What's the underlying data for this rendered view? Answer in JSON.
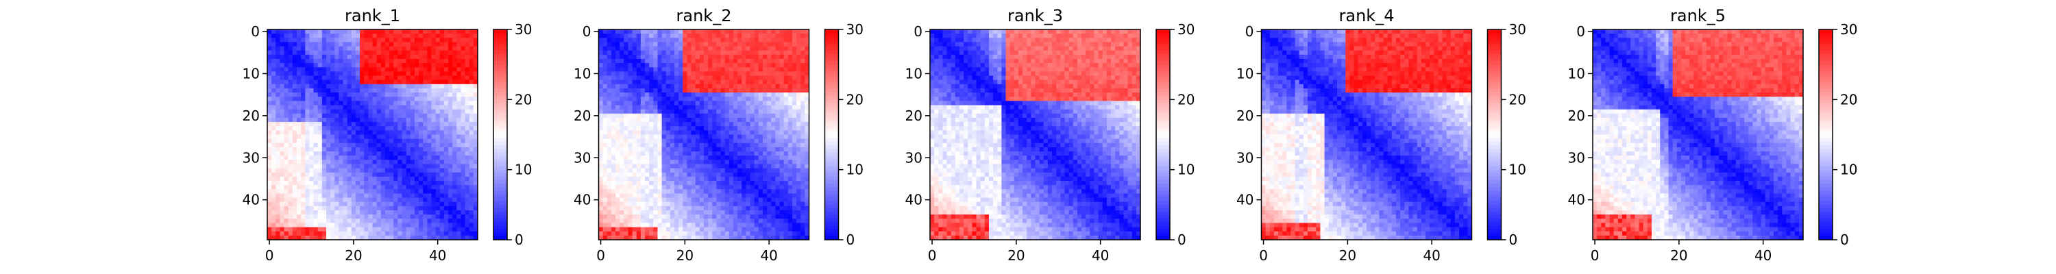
{
  "figure": {
    "background": "#ffffff",
    "colormap": "bwr",
    "colormap_colors": [
      "#0000ff",
      "#ffffff",
      "#ff0000"
    ]
  },
  "chart_data": [
    {
      "type": "heatmap",
      "title": "rank_1",
      "rows": 50,
      "cols": 50,
      "xticks": [
        0,
        20,
        40
      ],
      "yticks": [
        0,
        10,
        20,
        30,
        40
      ],
      "xlim": [
        0,
        49
      ],
      "ylim": [
        0,
        49
      ],
      "colorbar": {
        "range": [
          0,
          30
        ],
        "ticks": [
          0,
          10,
          20,
          30
        ]
      },
      "pattern": {
        "red_block_rows": [
          0,
          12
        ],
        "red_block_cols": [
          22,
          49
        ],
        "red_block_value": 29,
        "low_band_cols": [
          9,
          12
        ],
        "bottom_row_red_start": 47
      }
    },
    {
      "type": "heatmap",
      "title": "rank_2",
      "rows": 50,
      "cols": 50,
      "xticks": [
        0,
        20,
        40
      ],
      "yticks": [
        0,
        10,
        20,
        30,
        40
      ],
      "xlim": [
        0,
        49
      ],
      "ylim": [
        0,
        49
      ],
      "colorbar": {
        "range": [
          0,
          30
        ],
        "ticks": [
          0,
          10,
          20,
          30
        ]
      },
      "pattern": {
        "red_block_rows": [
          0,
          14
        ],
        "red_block_cols": [
          20,
          49
        ],
        "red_block_value": 27,
        "low_band_cols": [
          10,
          13
        ],
        "bottom_row_red_start": 47
      }
    },
    {
      "type": "heatmap",
      "title": "rank_3",
      "rows": 50,
      "cols": 50,
      "xticks": [
        0,
        20,
        40
      ],
      "yticks": [
        0,
        10,
        20,
        30,
        40
      ],
      "xlim": [
        0,
        49
      ],
      "ylim": [
        0,
        49
      ],
      "colorbar": {
        "range": [
          0,
          30
        ],
        "ticks": [
          0,
          10,
          20,
          30
        ]
      },
      "pattern": {
        "red_block_rows": [
          0,
          16
        ],
        "red_block_cols": [
          18,
          49
        ],
        "red_block_value": 25,
        "low_band_cols": [
          14,
          16
        ],
        "bottom_row_red_start": 44
      }
    },
    {
      "type": "heatmap",
      "title": "rank_4",
      "rows": 50,
      "cols": 50,
      "xticks": [
        0,
        20,
        40
      ],
      "yticks": [
        0,
        10,
        20,
        30,
        40
      ],
      "xlim": [
        0,
        49
      ],
      "ylim": [
        0,
        49
      ],
      "colorbar": {
        "range": [
          0,
          30
        ],
        "ticks": [
          0,
          10,
          20,
          30
        ]
      },
      "pattern": {
        "red_block_rows": [
          0,
          14
        ],
        "red_block_cols": [
          20,
          49
        ],
        "red_block_value": 28,
        "low_band_cols": [
          8,
          10
        ],
        "bottom_row_red_start": 46
      }
    },
    {
      "type": "heatmap",
      "title": "rank_5",
      "rows": 50,
      "cols": 50,
      "xticks": [
        0,
        20,
        40
      ],
      "yticks": [
        0,
        10,
        20,
        30,
        40
      ],
      "xlim": [
        0,
        49
      ],
      "ylim": [
        0,
        49
      ],
      "colorbar": {
        "range": [
          0,
          30
        ],
        "ticks": [
          0,
          10,
          20,
          30
        ]
      },
      "pattern": {
        "red_block_rows": [
          0,
          15
        ],
        "red_block_cols": [
          19,
          49
        ],
        "red_block_value": 26,
        "low_band_cols": [
          15,
          17
        ],
        "bottom_row_red_start": 44
      }
    }
  ]
}
